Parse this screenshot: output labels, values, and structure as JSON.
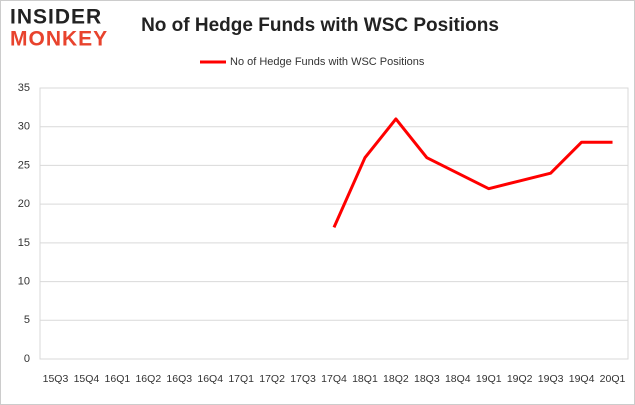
{
  "logo": {
    "line1": "INSIDER",
    "line2": "MONKEY"
  },
  "chart_data": {
    "type": "line",
    "title": "No of Hedge Funds with WSC Positions",
    "categories": [
      "15Q3",
      "15Q4",
      "16Q1",
      "16Q2",
      "16Q3",
      "16Q4",
      "17Q1",
      "17Q2",
      "17Q3",
      "17Q4",
      "18Q1",
      "18Q2",
      "18Q3",
      "18Q4",
      "19Q1",
      "19Q2",
      "19Q3",
      "19Q4",
      "20Q1"
    ],
    "series": [
      {
        "name": "No of Hedge Funds with WSC Positions",
        "color": "#ff0000",
        "values": [
          null,
          null,
          null,
          null,
          null,
          null,
          null,
          null,
          null,
          17,
          26,
          31,
          26,
          24,
          22,
          23,
          24,
          28,
          28
        ]
      }
    ],
    "ylim": [
      0,
      35
    ],
    "yticks": [
      0,
      5,
      10,
      15,
      20,
      25,
      30,
      35
    ],
    "grid": true,
    "legend": "top"
  }
}
